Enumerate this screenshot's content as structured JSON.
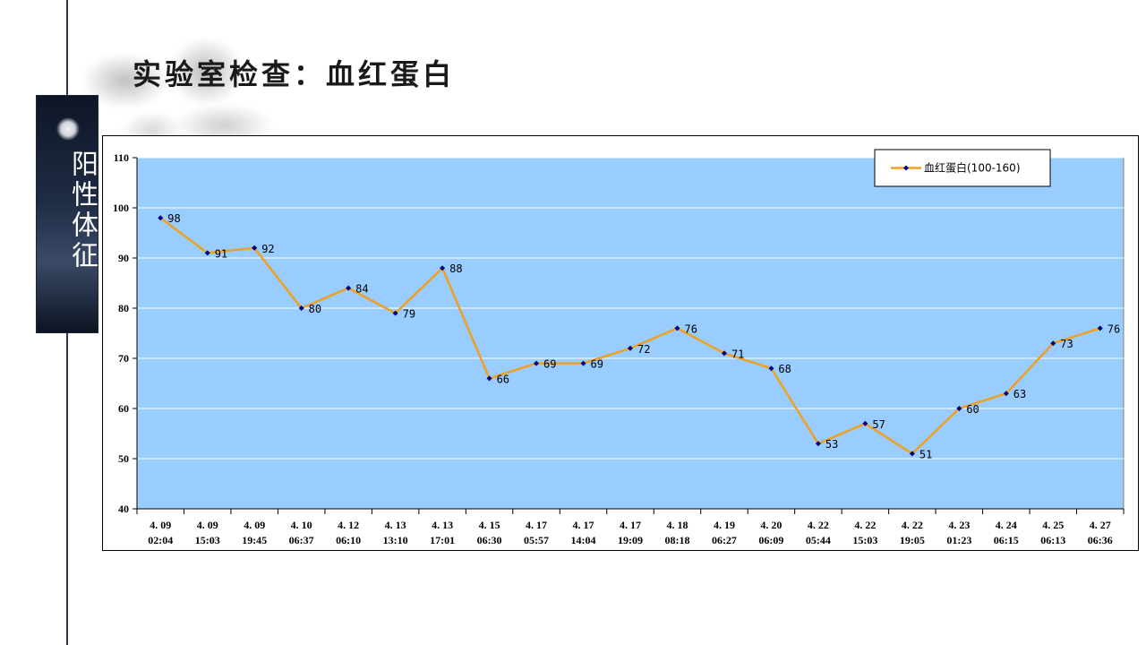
{
  "page": {
    "title": "实验室检查：血红蛋白",
    "side_label": "阳性体征"
  },
  "colors": {
    "plot_bg": "#99ccff",
    "line": "#f0a020",
    "marker": "#000080",
    "frame_line": "#2a3550"
  },
  "chart_data": {
    "type": "line",
    "categories": [
      [
        "4.09",
        "02:04"
      ],
      [
        "4.09",
        "15:03"
      ],
      [
        "4.09",
        "19:45"
      ],
      [
        "4.10",
        "06:37"
      ],
      [
        "4.12",
        "06:10"
      ],
      [
        "4.13",
        "13:10"
      ],
      [
        "4.13",
        "17:01"
      ],
      [
        "4.15",
        "06:30"
      ],
      [
        "4.17",
        "05:57"
      ],
      [
        "4.17",
        "14:04"
      ],
      [
        "4.17",
        "19:09"
      ],
      [
        "4.18",
        "08:18"
      ],
      [
        "4.19",
        "06:27"
      ],
      [
        "4.20",
        "06:09"
      ],
      [
        "4.22",
        "05:44"
      ],
      [
        "4.22",
        "15:03"
      ],
      [
        "4.22",
        "19:05"
      ],
      [
        "4.23",
        "01:23"
      ],
      [
        "4.24",
        "06:15"
      ],
      [
        "4.25",
        "06:13"
      ],
      [
        "4.27",
        "06:36"
      ]
    ],
    "series": [
      {
        "name": "血红蛋白(100-160)",
        "values": [
          98,
          91,
          92,
          80,
          84,
          79,
          88,
          66,
          69,
          69,
          72,
          76,
          71,
          68,
          53,
          57,
          51,
          60,
          63,
          73,
          76
        ]
      }
    ],
    "ylim": [
      40,
      110
    ],
    "yticks": [
      40,
      50,
      60,
      70,
      80,
      90,
      100,
      110
    ],
    "grid": true,
    "legend_position": "top-right",
    "data_labels": true
  }
}
